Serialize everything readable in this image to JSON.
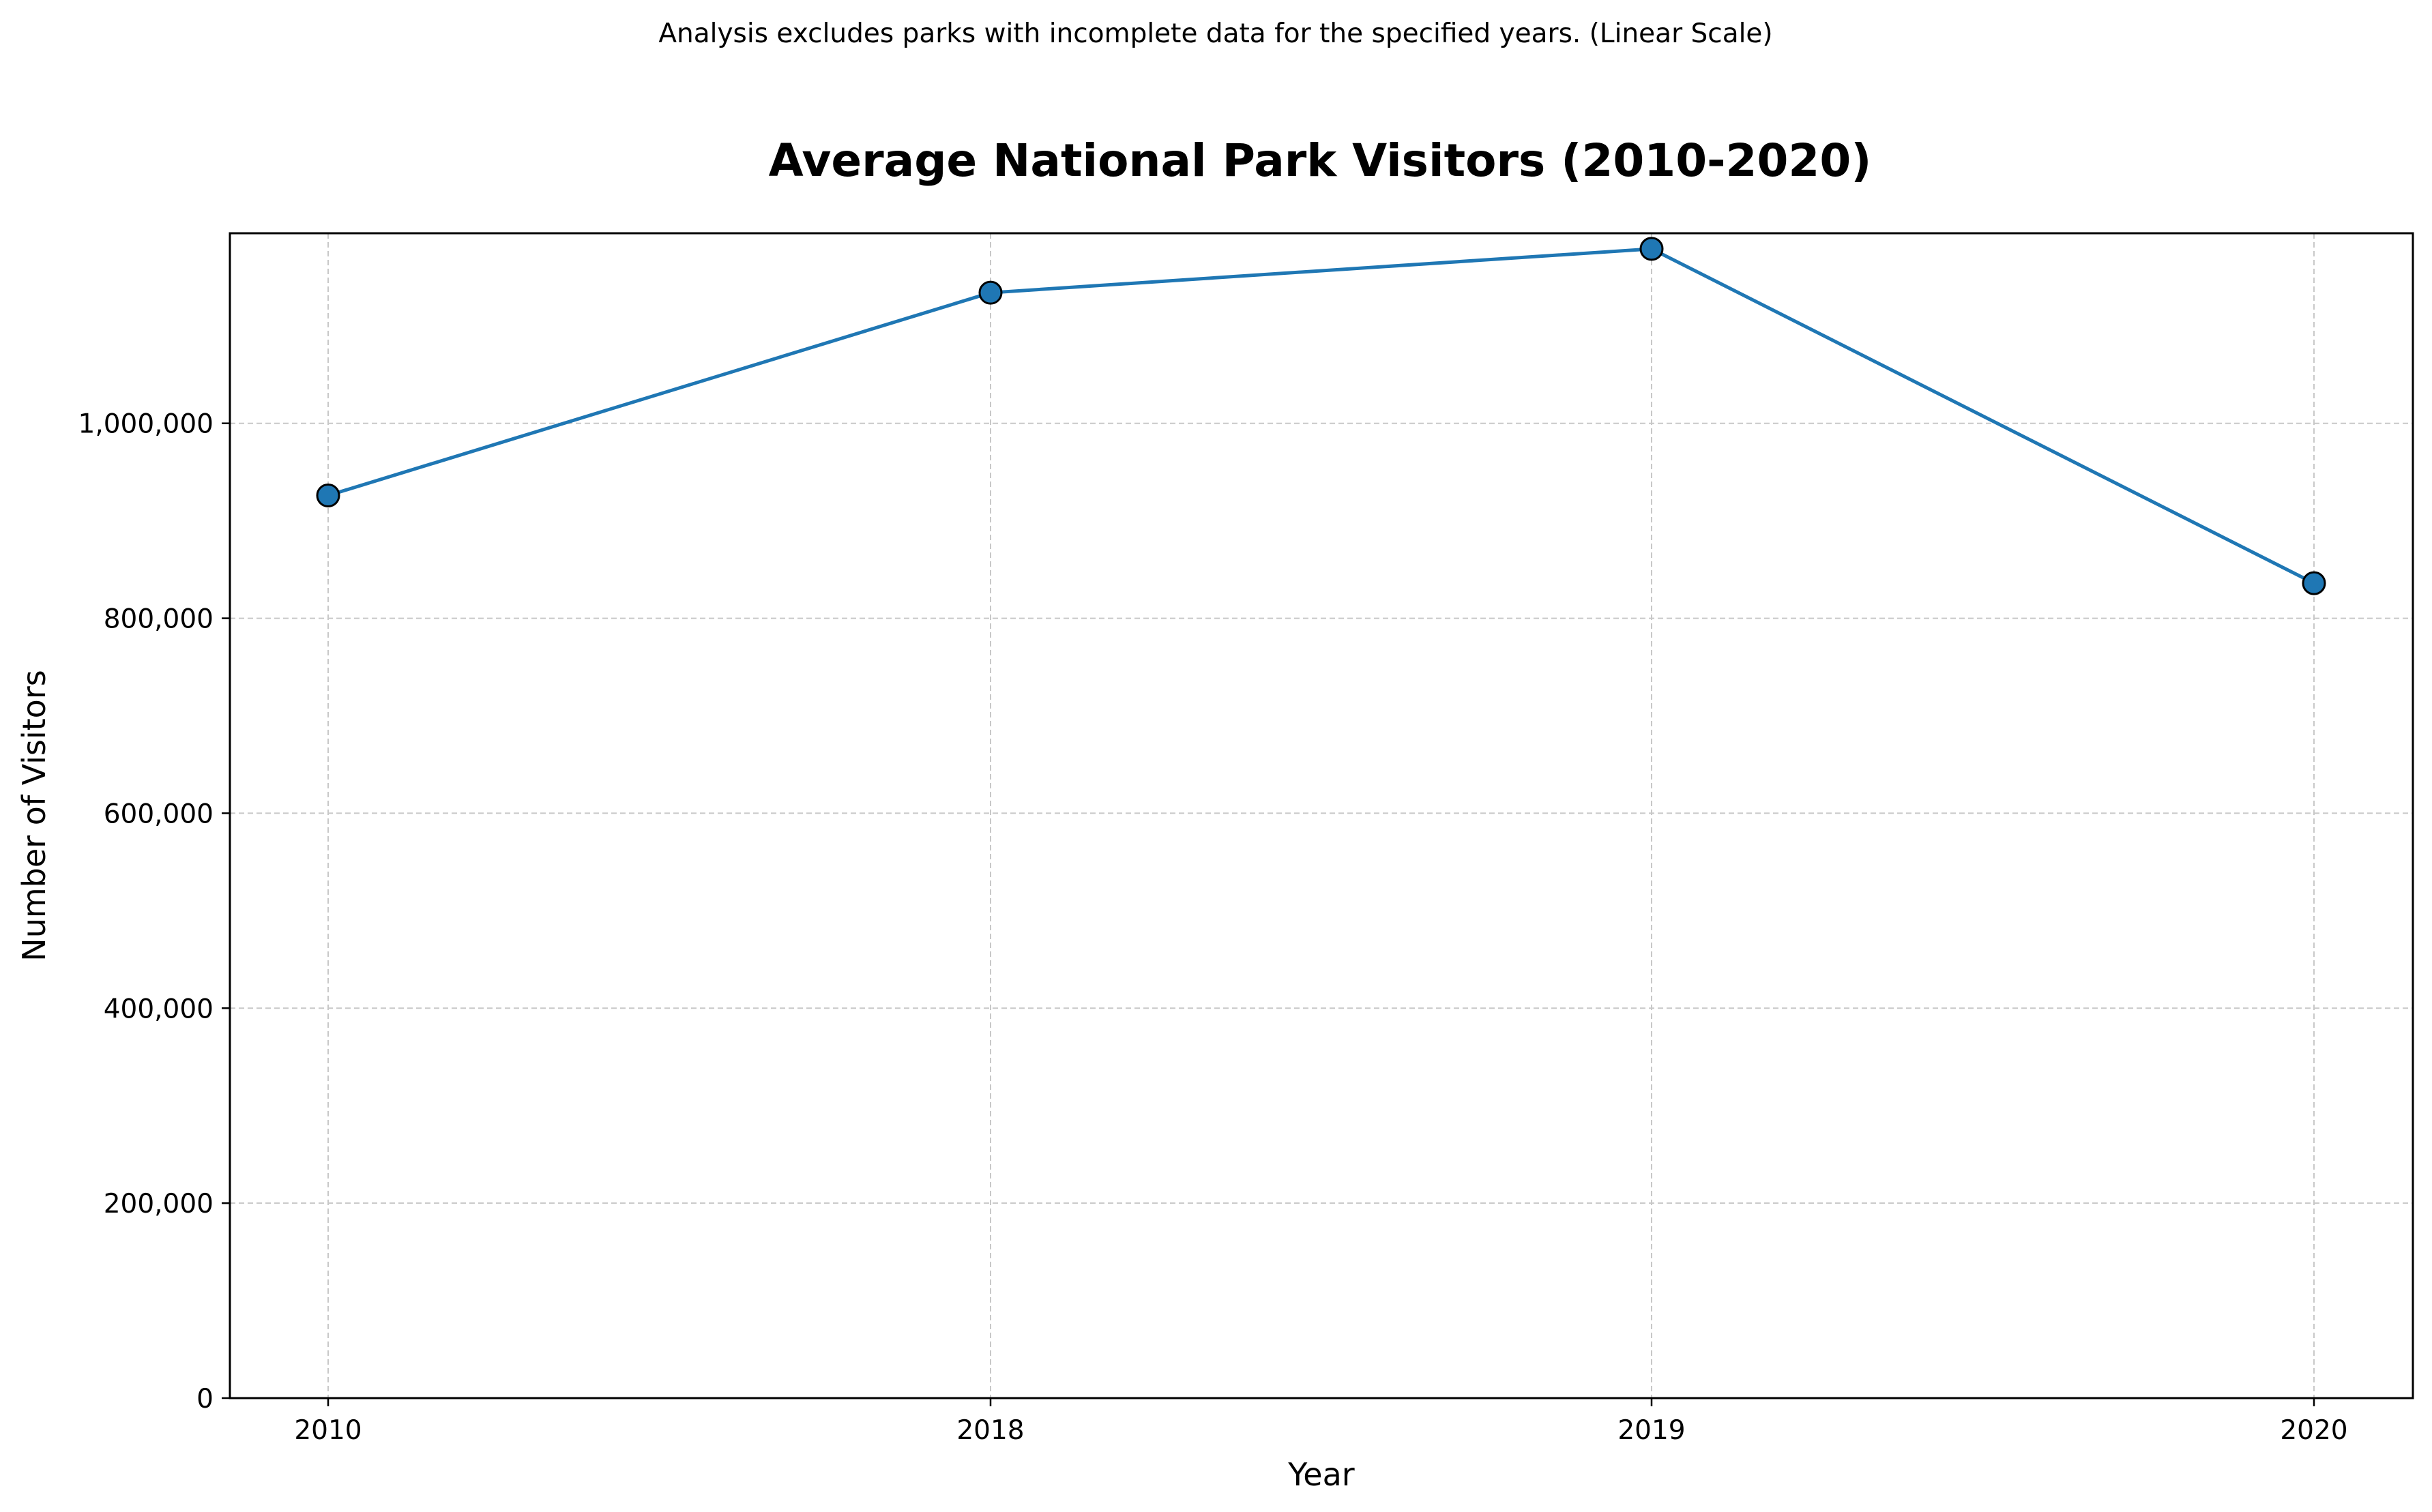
{
  "chart_data": {
    "type": "line",
    "title": "Average National Park Visitors (2010-2020)",
    "note": "Analysis excludes parks with incomplete data for the specified years. (Linear Scale)",
    "xlabel": "Year",
    "ylabel": "Number of Visitors",
    "categories": [
      "2010",
      "2018",
      "2019",
      "2020"
    ],
    "series": [
      {
        "values": [
          926000,
          1134000,
          1179000,
          836000
        ],
        "color": "#1f77b4"
      }
    ],
    "ylim": [
      0,
      1195000
    ],
    "yticks": [
      0,
      200000,
      400000,
      600000,
      800000,
      1000000
    ],
    "ytick_labels": [
      "0",
      "200,000",
      "400,000",
      "600,000",
      "800,000",
      "1,000,000"
    ],
    "grid": true,
    "legend": "none",
    "scale": "linear"
  }
}
